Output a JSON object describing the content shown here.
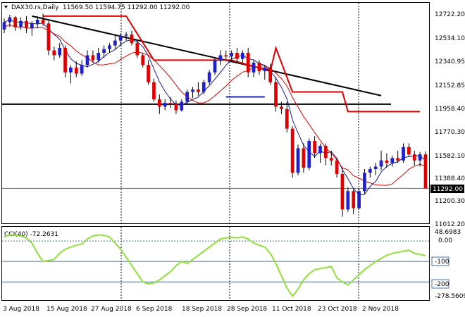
{
  "header": {
    "symbol": "DAX30.rs,Daily",
    "ohlc": "11569.50 11594.75 11292.00 11292.00"
  },
  "price_axis_labels": [
    "12722.20",
    "12534.10",
    "12340.95",
    "12152.85",
    "11958.40",
    "11770.30",
    "11582.10",
    "11388.40",
    "11200.30",
    "11012.20"
  ],
  "current_price_label": "11292.00",
  "cci": {
    "title": "CCI(40) -72.2631",
    "axis_labels": [
      "48.6983",
      "0.00",
      "-100",
      "-200",
      "-278.5609"
    ]
  },
  "date_labels": [
    "3 Aug 2018",
    "15 Aug 2018",
    "27 Aug 2018",
    "6 Sep 2018",
    "18 Sep 2018",
    "28 Sep 2018",
    "11 Oct 2018",
    "23 Oct 2018",
    "2 Nov 2018"
  ],
  "colors": {
    "bull": "#1f1fd0",
    "bear": "#e00000",
    "trendline": "#000000",
    "envelope": "#e00000",
    "ma": "#1a1a8c",
    "cci_line": "#8fe03a",
    "level_line": "#4a6fa0"
  },
  "chart_data": [
    {
      "type": "candlestick",
      "title": "DAX30.rs,Daily",
      "ylim": [
        11012.2,
        12722.2
      ],
      "categories": [
        "3 Aug 2018",
        "15 Aug 2018",
        "27 Aug 2018",
        "6 Sep 2018",
        "18 Sep 2018",
        "28 Sep 2018",
        "11 Oct 2018",
        "23 Oct 2018",
        "2 Nov 2018"
      ],
      "ohlc": [
        [
          12590,
          12680,
          12560,
          12650
        ],
        [
          12650,
          12710,
          12610,
          12690
        ],
        [
          12690,
          12700,
          12580,
          12610
        ],
        [
          12610,
          12690,
          12590,
          12660
        ],
        [
          12660,
          12700,
          12560,
          12600
        ],
        [
          12600,
          12660,
          12540,
          12640
        ],
        [
          12640,
          12700,
          12600,
          12670
        ],
        [
          12670,
          12720,
          12620,
          12640
        ],
        [
          12640,
          12660,
          12380,
          12420
        ],
        [
          12420,
          12450,
          12340,
          12380
        ],
        [
          12380,
          12480,
          12360,
          12440
        ],
        [
          12440,
          12460,
          12200,
          12240
        ],
        [
          12240,
          12300,
          12150,
          12280
        ],
        [
          12280,
          12330,
          12200,
          12230
        ],
        [
          12230,
          12340,
          12210,
          12300
        ],
        [
          12300,
          12420,
          12280,
          12380
        ],
        [
          12380,
          12420,
          12320,
          12340
        ],
        [
          12340,
          12440,
          12320,
          12400
        ],
        [
          12400,
          12460,
          12360,
          12430
        ],
        [
          12430,
          12480,
          12400,
          12460
        ],
        [
          12460,
          12540,
          12430,
          12500
        ],
        [
          12500,
          12560,
          12460,
          12540
        ],
        [
          12540,
          12570,
          12500,
          12550
        ],
        [
          12550,
          12580,
          12460,
          12480
        ],
        [
          12480,
          12500,
          12360,
          12380
        ],
        [
          12380,
          12400,
          12280,
          12300
        ],
        [
          12300,
          12340,
          12140,
          12160
        ],
        [
          12160,
          12190,
          12000,
          12020
        ],
        [
          12020,
          12060,
          11900,
          11960
        ],
        [
          11960,
          12020,
          11930,
          11990
        ],
        [
          11990,
          12040,
          11950,
          11980
        ],
        [
          11980,
          12010,
          11900,
          11930
        ],
        [
          11930,
          12020,
          11920,
          12000
        ],
        [
          12000,
          12100,
          11980,
          12080
        ],
        [
          12080,
          12120,
          12030,
          12100
        ],
        [
          12100,
          12160,
          12050,
          12080
        ],
        [
          12080,
          12180,
          12060,
          12160
        ],
        [
          12160,
          12260,
          12140,
          12240
        ],
        [
          12240,
          12360,
          12220,
          12340
        ],
        [
          12340,
          12420,
          12300,
          12380
        ],
        [
          12380,
          12420,
          12340,
          12370
        ],
        [
          12370,
          12420,
          12330,
          12400
        ],
        [
          12400,
          12440,
          12320,
          12350
        ],
        [
          12350,
          12420,
          12320,
          12400
        ],
        [
          12400,
          12440,
          12200,
          12240
        ],
        [
          12240,
          12340,
          12200,
          12320
        ],
        [
          12320,
          12340,
          12220,
          12250
        ],
        [
          12250,
          12300,
          12180,
          12280
        ],
        [
          12280,
          12310,
          12140,
          12160
        ],
        [
          12160,
          12200,
          11920,
          11960
        ],
        [
          11960,
          12000,
          11900,
          11940
        ],
        [
          11940,
          12000,
          11750,
          11780
        ],
        [
          11780,
          11800,
          11380,
          11420
        ],
        [
          11420,
          11650,
          11400,
          11620
        ],
        [
          11620,
          11660,
          11420,
          11460
        ],
        [
          11460,
          11700,
          11440,
          11680
        ],
        [
          11680,
          11720,
          11540,
          11580
        ],
        [
          11580,
          11660,
          11500,
          11640
        ],
        [
          11640,
          11660,
          11480,
          11540
        ],
        [
          11540,
          11600,
          11480,
          11520
        ],
        [
          11520,
          11540,
          11380,
          11410
        ],
        [
          11410,
          11460,
          11060,
          11120
        ],
        [
          11120,
          11300,
          11100,
          11270
        ],
        [
          11270,
          11290,
          11080,
          11130
        ],
        [
          11130,
          11290,
          11120,
          11270
        ],
        [
          11270,
          11450,
          11250,
          11420
        ],
        [
          11420,
          11470,
          11380,
          11450
        ],
        [
          11450,
          11500,
          11400,
          11470
        ],
        [
          11470,
          11600,
          11440,
          11520
        ],
        [
          11520,
          11580,
          11460,
          11500
        ],
        [
          11500,
          11560,
          11470,
          11540
        ],
        [
          11540,
          11600,
          11500,
          11520
        ],
        [
          11520,
          11660,
          11500,
          11630
        ],
        [
          11630,
          11660,
          11550,
          11570
        ],
        [
          11570,
          11600,
          11480,
          11520
        ],
        [
          11520,
          11590,
          11470,
          11570
        ],
        [
          11570,
          11595,
          11292,
          11292
        ]
      ]
    },
    {
      "type": "line",
      "title": "CCI(40) -72.2631",
      "ylim": [
        -278.5609,
        48.6983
      ],
      "values": [
        20,
        30,
        28,
        25,
        15,
        -10,
        -60,
        -100,
        -95,
        -90,
        -60,
        -40,
        -30,
        -20,
        -15,
        10,
        25,
        30,
        28,
        20,
        -10,
        -40,
        -80,
        -120,
        -160,
        -200,
        -210,
        -205,
        -190,
        -170,
        -150,
        -120,
        -100,
        -110,
        -90,
        -70,
        -50,
        -30,
        -10,
        10,
        15,
        18,
        15,
        20,
        10,
        -10,
        -20,
        -30,
        -60,
        -110,
        -170,
        -230,
        -270,
        -235,
        -190,
        -160,
        -140,
        -135,
        -130,
        -125,
        -180,
        -200,
        -215,
        -190,
        -165,
        -140,
        -120,
        -100,
        -85,
        -70,
        -60,
        -55,
        -50,
        -45,
        -60,
        -65,
        -72
      ]
    }
  ]
}
